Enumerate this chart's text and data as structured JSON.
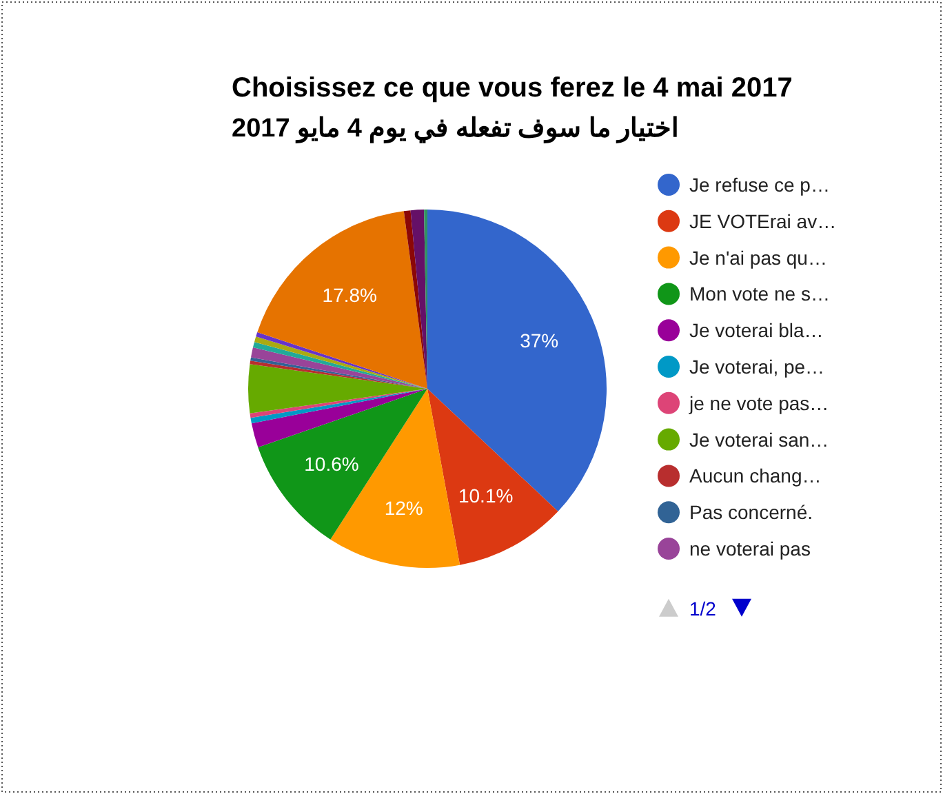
{
  "chart_data": {
    "type": "pie",
    "title": "Choisissez ce que vous ferez le 4 mai 2017",
    "subtitle": "اختيار ما سوف تفعله في يوم 4 مايو 2017",
    "categories": [
      "Je refuse ce p…",
      "JE VOTErai av…",
      "Je n'ai pas qu…",
      "Mon vote ne s…",
      "Je voterai bla…",
      "Je voterai, pe…",
      "je ne vote pas…",
      "Je voterai san…",
      "Aucun chang…",
      "Pas concerné.",
      "ne voterai pas",
      null,
      null,
      null,
      null,
      null,
      null,
      null
    ],
    "values": [
      37,
      10.1,
      12,
      10.6,
      2.2,
      0.5,
      0.4,
      4.4,
      0.3,
      0.3,
      0.9,
      0.5,
      0.5,
      0.4,
      17.8,
      0.6,
      1.2,
      0.3
    ],
    "colors": [
      "#3366cc",
      "#dc3912",
      "#ff9900",
      "#109618",
      "#990099",
      "#0099c6",
      "#dd4477",
      "#66aa00",
      "#b82e2e",
      "#316395",
      "#994499",
      "#22aa99",
      "#aaaa11",
      "#6633cc",
      "#e67300",
      "#8b0707",
      "#651067",
      "#329262"
    ],
    "value_labels": [
      "37%",
      "10.1%",
      "12%",
      "10.6%",
      null,
      null,
      null,
      null,
      null,
      null,
      null,
      null,
      null,
      null,
      "17.8%",
      null,
      null,
      null
    ],
    "legend": "right",
    "annotations": [
      "1/2"
    ]
  }
}
